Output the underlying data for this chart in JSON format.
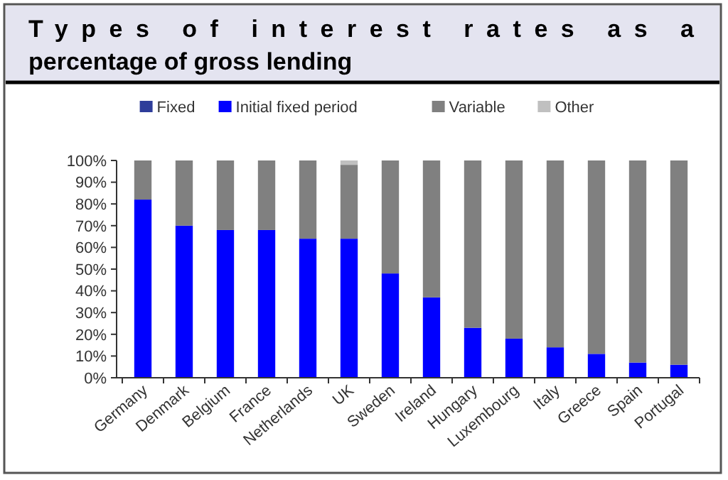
{
  "chart_data": {
    "type": "bar",
    "stacked": true,
    "title": "Types of interest rates as a percentage of gross lending",
    "categories": [
      "Germany",
      "Denmark",
      "Belgium",
      "France",
      "Netherlands",
      "UK",
      "Sweden",
      "Ireland",
      "Hungary",
      "Luxembourg",
      "Italy",
      "Greece",
      "Spain",
      "Portugal"
    ],
    "series": [
      {
        "name": "Fixed",
        "color": "#2e3d9a",
        "values": [
          0,
          0,
          0,
          0,
          0,
          0,
          0,
          0,
          0,
          0,
          0,
          0,
          0,
          0
        ]
      },
      {
        "name": "Initial fixed period",
        "color": "#0000ff",
        "values": [
          82,
          70,
          68,
          68,
          64,
          64,
          48,
          37,
          23,
          18,
          14,
          11,
          7,
          6
        ]
      },
      {
        "name": "Variable",
        "color": "#808080",
        "values": [
          18,
          30,
          32,
          32,
          36,
          34,
          52,
          63,
          77,
          82,
          86,
          89,
          93,
          94
        ]
      },
      {
        "name": "Other",
        "color": "#c0c0c0",
        "values": [
          0,
          0,
          0,
          0,
          0,
          2,
          0,
          0,
          0,
          0,
          0,
          0,
          0,
          0
        ]
      }
    ],
    "ylim": [
      0,
      100
    ],
    "yticks": [
      {
        "value": 0,
        "label": "0%"
      },
      {
        "value": 10,
        "label": "10%"
      },
      {
        "value": 20,
        "label": "20%"
      },
      {
        "value": 30,
        "label": "30%"
      },
      {
        "value": 40,
        "label": "40%"
      },
      {
        "value": 50,
        "label": "50%"
      },
      {
        "value": 60,
        "label": "60%"
      },
      {
        "value": 70,
        "label": "70%"
      },
      {
        "value": 80,
        "label": "80%"
      },
      {
        "value": 90,
        "label": "90%"
      },
      {
        "value": 100,
        "label": "100%"
      }
    ],
    "legend": "top",
    "grid": false
  }
}
